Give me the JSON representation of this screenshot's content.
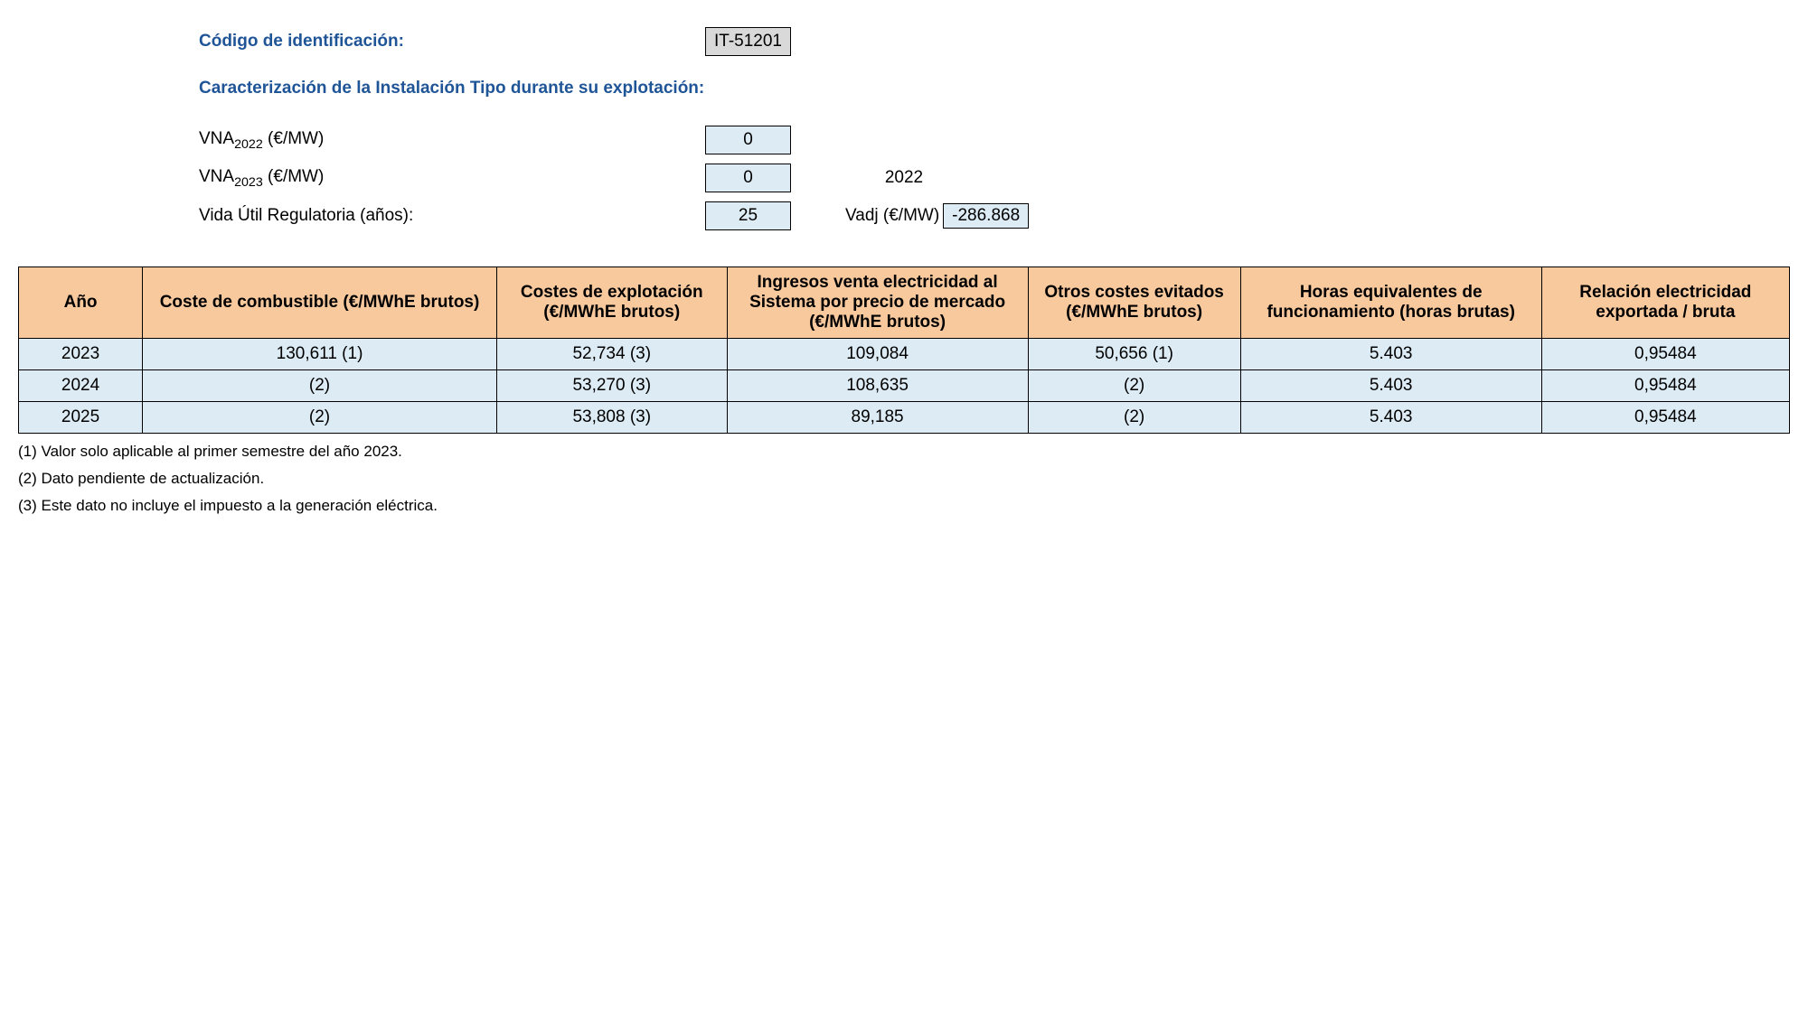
{
  "header": {
    "id_label": "Código de identificación:",
    "id_value": "IT-51201",
    "char_label": "Caracterización de la Instalación Tipo durante su explotación:",
    "vna2022_label_prefix": "VNA",
    "vna2022_label_sub": "2022",
    "vna2022_label_suffix": " (€/MW)",
    "vna2022_value": "0",
    "vna2023_label_prefix": "VNA",
    "vna2023_label_sub": "2023",
    "vna2023_label_suffix": " (€/MW)",
    "vna2023_value": "0",
    "vida_label": "Vida Útil Regulatoria (años):",
    "vida_value": "25",
    "year_label": "2022",
    "vadj_label": "Vadj (€/MW)",
    "vadj_value": "-286.868"
  },
  "table": {
    "columns": [
      "Año",
      "Coste de combustible (€/MWhE brutos)",
      "Costes de explotación (€/MWhE brutos)",
      "Ingresos venta electricidad al Sistema por precio de mercado (€/MWhE brutos)",
      "Otros costes evitados (€/MWhE brutos)",
      "Horas equivalentes de funcionamiento (horas brutas)",
      "Relación electricidad exportada / bruta"
    ],
    "col_widths": [
      "7%",
      "20%",
      "13%",
      "17%",
      "12%",
      "17%",
      "14%"
    ],
    "rows": [
      [
        "2023",
        "130,611 (1)",
        "52,734 (3)",
        "109,084",
        "50,656 (1)",
        "5.403",
        "0,95484"
      ],
      [
        "2024",
        "(2)",
        "53,270 (3)",
        "108,635",
        "(2)",
        "5.403",
        "0,95484"
      ],
      [
        "2025",
        "(2)",
        "53,808 (3)",
        "89,185",
        "(2)",
        "5.403",
        "0,95484"
      ]
    ]
  },
  "footnotes": [
    "(1) Valor solo aplicable al primer semestre del año 2023.",
    "(2) Dato pendiente de actualización.",
    "(3) Este dato no incluye el impuesto a la generación eléctrica."
  ],
  "colors": {
    "header_bg": "#f9c99e",
    "row_bg": "#dcebf4",
    "blue_text": "#1f5597",
    "gray_box": "#d9d9d9"
  }
}
